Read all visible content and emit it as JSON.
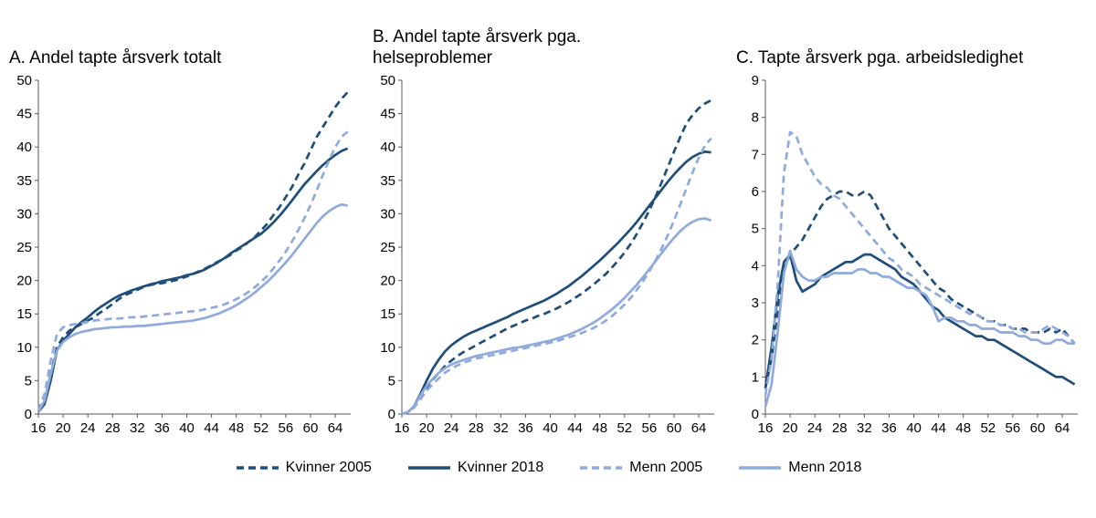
{
  "colors": {
    "dark": "#1f4e79",
    "light": "#8faadc",
    "axis": "#595959",
    "text": "#000000"
  },
  "legend": [
    {
      "label": "Kvinner 2005",
      "color": "dark",
      "dash": true
    },
    {
      "label": "Kvinner 2018",
      "color": "dark",
      "dash": false
    },
    {
      "label": "Menn 2005",
      "color": "light",
      "dash": true
    },
    {
      "label": "Menn 2018",
      "color": "light",
      "dash": false
    }
  ],
  "chart_data": [
    {
      "type": "line",
      "title": "A. Andel tapte årsverk totalt",
      "ylim": [
        0,
        50
      ],
      "ytick": 5,
      "xlim": [
        16,
        66.5
      ],
      "xticks": [
        16,
        20,
        24,
        28,
        32,
        36,
        40,
        44,
        48,
        52,
        56,
        60,
        64
      ],
      "x": [
        16,
        17,
        18,
        19,
        20,
        21,
        22,
        23,
        24,
        25,
        26,
        27,
        28,
        29,
        30,
        31,
        32,
        33,
        34,
        35,
        36,
        37,
        38,
        39,
        40,
        41,
        42,
        43,
        44,
        45,
        46,
        47,
        48,
        49,
        50,
        51,
        52,
        53,
        54,
        55,
        56,
        57,
        58,
        59,
        60,
        61,
        62,
        63,
        64,
        65,
        66
      ],
      "series": [
        {
          "name": "Kvinner 2005",
          "color": "dark",
          "dash": true,
          "values": [
            0.5,
            2,
            6,
            10,
            11.5,
            12.5,
            13,
            13.5,
            14,
            14.5,
            15.2,
            15.8,
            16.5,
            17.2,
            17.8,
            18.2,
            18.6,
            19,
            19.3,
            19.5,
            19.6,
            19.8,
            20,
            20.3,
            20.6,
            21,
            21.4,
            21.8,
            22.3,
            22.8,
            23.3,
            23.8,
            24.5,
            25,
            25.8,
            26.5,
            27.5,
            28.5,
            29.8,
            31,
            32.5,
            34,
            35.8,
            37.5,
            39.5,
            41.5,
            43,
            44.5,
            46,
            47.2,
            48.2
          ]
        },
        {
          "name": "Kvinner 2018",
          "color": "dark",
          "dash": false,
          "values": [
            0.3,
            1.5,
            5,
            9.5,
            11,
            12,
            13,
            13.8,
            14.5,
            15.3,
            16,
            16.6,
            17.2,
            17.7,
            18.1,
            18.5,
            18.8,
            19.1,
            19.4,
            19.6,
            19.9,
            20.1,
            20.3,
            20.5,
            20.8,
            21,
            21.3,
            21.7,
            22.2,
            22.7,
            23.3,
            24,
            24.6,
            25.2,
            25.8,
            26.4,
            27,
            27.8,
            28.7,
            29.7,
            30.8,
            32,
            33.2,
            34.4,
            35.4,
            36.4,
            37.3,
            38.1,
            38.8,
            39.4,
            39.8
          ]
        },
        {
          "name": "Menn 2005",
          "color": "light",
          "dash": true,
          "values": [
            0.5,
            3,
            8,
            12,
            13,
            13.3,
            13.5,
            13.6,
            13.8,
            14,
            14.1,
            14.2,
            14.3,
            14.3,
            14.4,
            14.5,
            14.5,
            14.6,
            14.7,
            14.8,
            14.9,
            15,
            15.1,
            15.2,
            15.3,
            15.4,
            15.5,
            15.7,
            15.9,
            16.1,
            16.4,
            16.8,
            17.2,
            17.7,
            18.3,
            19,
            19.8,
            20.7,
            21.8,
            23,
            24.3,
            25.8,
            27.5,
            29.3,
            31.3,
            33.5,
            35.8,
            38,
            40,
            41.5,
            42.3
          ]
        },
        {
          "name": "Menn 2018",
          "color": "light",
          "dash": false,
          "values": [
            0.3,
            2,
            6,
            9.5,
            10.8,
            11.5,
            12,
            12.3,
            12.5,
            12.7,
            12.8,
            12.9,
            13,
            13,
            13.1,
            13.1,
            13.2,
            13.2,
            13.3,
            13.4,
            13.5,
            13.6,
            13.7,
            13.8,
            13.9,
            14,
            14.2,
            14.4,
            14.7,
            15,
            15.4,
            15.8,
            16.3,
            16.9,
            17.5,
            18.2,
            19,
            19.8,
            20.7,
            21.7,
            22.7,
            23.8,
            25,
            26.2,
            27.4,
            28.6,
            29.6,
            30.4,
            31,
            31.4,
            31.2
          ]
        }
      ]
    },
    {
      "type": "line",
      "title": "B. Andel tapte årsverk pga. helseproblemer",
      "ylim": [
        0,
        50
      ],
      "ytick": 5,
      "xlim": [
        16,
        66.5
      ],
      "xticks": [
        16,
        20,
        24,
        28,
        32,
        36,
        40,
        44,
        48,
        52,
        56,
        60,
        64
      ],
      "x": [
        16,
        17,
        18,
        19,
        20,
        21,
        22,
        23,
        24,
        25,
        26,
        27,
        28,
        29,
        30,
        31,
        32,
        33,
        34,
        35,
        36,
        37,
        38,
        39,
        40,
        41,
        42,
        43,
        44,
        45,
        46,
        47,
        48,
        49,
        50,
        51,
        52,
        53,
        54,
        55,
        56,
        57,
        58,
        59,
        60,
        61,
        62,
        63,
        64,
        65,
        66
      ],
      "series": [
        {
          "name": "Kvinner 2005",
          "color": "dark",
          "dash": true,
          "values": [
            0,
            0.3,
            1,
            2.5,
            4,
            5.2,
            6.2,
            7.2,
            8,
            8.7,
            9.3,
            9.8,
            10.3,
            10.8,
            11.3,
            11.8,
            12.3,
            12.8,
            13.2,
            13.6,
            14,
            14.3,
            14.7,
            15,
            15.4,
            15.8,
            16.3,
            16.8,
            17.4,
            18,
            18.7,
            19.4,
            20.2,
            21,
            22,
            23,
            24.2,
            25.5,
            27,
            28.7,
            30.5,
            32.5,
            34.7,
            37,
            39.3,
            41.5,
            43.5,
            44.8,
            45.8,
            46.5,
            47
          ]
        },
        {
          "name": "Kvinner 2018",
          "color": "dark",
          "dash": false,
          "values": [
            0,
            0.3,
            1.2,
            3,
            5,
            6.8,
            8.2,
            9.4,
            10.3,
            11,
            11.6,
            12.1,
            12.5,
            12.9,
            13.3,
            13.7,
            14.1,
            14.5,
            15,
            15.4,
            15.8,
            16.2,
            16.6,
            17,
            17.5,
            18,
            18.6,
            19.2,
            19.9,
            20.6,
            21.4,
            22.2,
            23,
            23.9,
            24.8,
            25.7,
            26.7,
            27.7,
            28.8,
            30,
            31.2,
            32.4,
            33.6,
            34.8,
            35.9,
            36.9,
            37.8,
            38.5,
            39,
            39.3,
            39.2
          ]
        },
        {
          "name": "Menn 2005",
          "color": "light",
          "dash": true,
          "values": [
            0,
            0.3,
            1,
            2.2,
            3.5,
            4.5,
            5.4,
            6.2,
            6.8,
            7.3,
            7.7,
            8,
            8.3,
            8.5,
            8.7,
            8.9,
            9.1,
            9.3,
            9.5,
            9.7,
            9.9,
            10.1,
            10.3,
            10.5,
            10.7,
            10.9,
            11.2,
            11.5,
            11.8,
            12.1,
            12.5,
            12.9,
            13.4,
            14,
            14.7,
            15.5,
            16.4,
            17.4,
            18.6,
            19.9,
            21.4,
            23,
            24.8,
            26.8,
            29,
            31.4,
            33.8,
            36.2,
            38.4,
            40.2,
            41.3
          ]
        },
        {
          "name": "Menn 2018",
          "color": "light",
          "dash": false,
          "values": [
            0,
            0.3,
            1.2,
            2.8,
            4.2,
            5.3,
            6.2,
            6.9,
            7.4,
            7.8,
            8.1,
            8.4,
            8.7,
            8.9,
            9.1,
            9.3,
            9.5,
            9.7,
            9.9,
            10,
            10.2,
            10.4,
            10.6,
            10.8,
            11,
            11.3,
            11.6,
            11.9,
            12.3,
            12.7,
            13.2,
            13.7,
            14.3,
            15,
            15.7,
            16.5,
            17.4,
            18.4,
            19.4,
            20.5,
            21.7,
            22.9,
            24.1,
            25.3,
            26.4,
            27.4,
            28.2,
            28.8,
            29.2,
            29.3,
            29
          ]
        }
      ]
    },
    {
      "type": "line",
      "title": "C. Tapte årsverk pga. arbeidsledighet",
      "ylim": [
        0,
        9
      ],
      "ytick": 1,
      "xlim": [
        16,
        66.5
      ],
      "xticks": [
        16,
        20,
        24,
        28,
        32,
        36,
        40,
        44,
        48,
        52,
        56,
        60,
        64
      ],
      "x": [
        16,
        17,
        18,
        19,
        20,
        21,
        22,
        23,
        24,
        25,
        26,
        27,
        28,
        29,
        30,
        31,
        32,
        33,
        34,
        35,
        36,
        37,
        38,
        39,
        40,
        41,
        42,
        43,
        44,
        45,
        46,
        47,
        48,
        49,
        50,
        51,
        52,
        53,
        54,
        55,
        56,
        57,
        58,
        59,
        60,
        61,
        62,
        63,
        64,
        65,
        66
      ],
      "series": [
        {
          "name": "Kvinner 2005",
          "color": "dark",
          "dash": true,
          "values": [
            0.7,
            1.5,
            2.8,
            3.9,
            4.3,
            4.5,
            4.7,
            5,
            5.3,
            5.6,
            5.8,
            5.9,
            6,
            6,
            5.9,
            5.9,
            6,
            5.9,
            5.6,
            5.3,
            5,
            4.8,
            4.6,
            4.4,
            4.2,
            4,
            3.8,
            3.6,
            3.4,
            3.3,
            3.1,
            3,
            2.9,
            2.8,
            2.7,
            2.6,
            2.5,
            2.5,
            2.4,
            2.4,
            2.3,
            2.3,
            2.3,
            2.2,
            2.2,
            2.2,
            2.3,
            2.2,
            2.3,
            2.1,
            1.9
          ]
        },
        {
          "name": "Kvinner 2018",
          "color": "dark",
          "dash": false,
          "values": [
            0.7,
            1.8,
            3.2,
            4.1,
            4.3,
            3.6,
            3.3,
            3.4,
            3.5,
            3.7,
            3.8,
            3.9,
            4,
            4.1,
            4.1,
            4.2,
            4.3,
            4.3,
            4.2,
            4.1,
            4,
            3.9,
            3.7,
            3.6,
            3.5,
            3.3,
            3.1,
            2.9,
            2.8,
            2.6,
            2.5,
            2.4,
            2.3,
            2.2,
            2.1,
            2.1,
            2,
            2,
            1.9,
            1.8,
            1.7,
            1.6,
            1.5,
            1.4,
            1.3,
            1.2,
            1.1,
            1,
            1,
            0.9,
            0.8
          ]
        },
        {
          "name": "Menn 2005",
          "color": "light",
          "dash": true,
          "values": [
            0.5,
            1.5,
            3.5,
            6.5,
            7.6,
            7.5,
            7,
            6.7,
            6.4,
            6.2,
            6.1,
            5.9,
            5.8,
            5.6,
            5.4,
            5.2,
            5,
            4.8,
            4.6,
            4.4,
            4.2,
            4.1,
            3.9,
            3.8,
            3.7,
            3.5,
            3.4,
            3.3,
            3.2,
            3.1,
            3,
            2.9,
            2.8,
            2.7,
            2.7,
            2.6,
            2.5,
            2.5,
            2.4,
            2.4,
            2.3,
            2.3,
            2.2,
            2.2,
            2.2,
            2.3,
            2.4,
            2.3,
            2.2,
            2.1,
            1.9
          ]
        },
        {
          "name": "Menn 2018",
          "color": "light",
          "dash": false,
          "values": [
            0.2,
            0.8,
            2.2,
            3.8,
            4.4,
            3.9,
            3.7,
            3.6,
            3.6,
            3.7,
            3.7,
            3.8,
            3.8,
            3.8,
            3.8,
            3.9,
            3.9,
            3.8,
            3.8,
            3.7,
            3.7,
            3.6,
            3.5,
            3.4,
            3.4,
            3.3,
            3.2,
            2.9,
            2.5,
            2.6,
            2.6,
            2.5,
            2.5,
            2.4,
            2.4,
            2.3,
            2.3,
            2.3,
            2.2,
            2.2,
            2.2,
            2.1,
            2.1,
            2,
            2,
            1.9,
            1.9,
            2,
            2,
            1.9,
            1.9
          ]
        }
      ]
    }
  ]
}
